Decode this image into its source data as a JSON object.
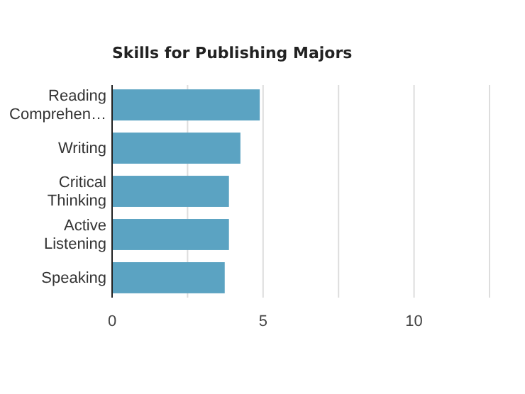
{
  "chart_data": {
    "type": "bar",
    "orientation": "horizontal",
    "title": "Skills for Publishing Majors",
    "categories": [
      "Reading Comprehen…",
      "Writing",
      "Critical Thinking",
      "Active Listening",
      "Speaking"
    ],
    "values": [
      4.89,
      4.25,
      3.87,
      3.87,
      3.73
    ],
    "color": "#5ba3c2",
    "xlim": [
      0,
      12.5
    ],
    "xticks": [
      0,
      {
        "value": 2.5,
        "label": null
      },
      5,
      {
        "value": 7.5,
        "label": null
      },
      10,
      {
        "value": 12.5,
        "label": null
      }
    ],
    "grid": "x"
  }
}
